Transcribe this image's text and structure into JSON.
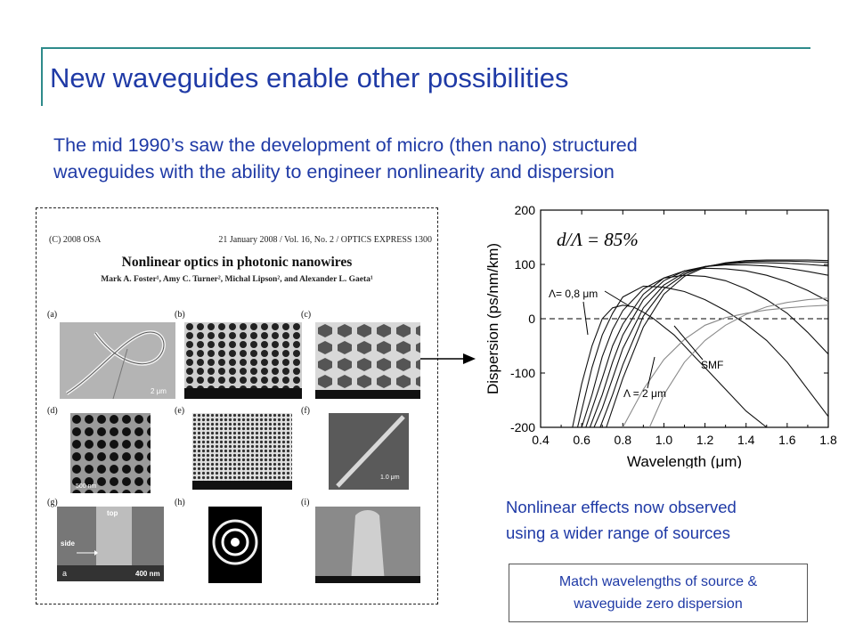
{
  "slide": {
    "title": "New waveguides enable other possibilities",
    "intro_lines": [
      "The mid 1990’s saw the development of micro (then nano) structured",
      "waveguides with the ability to engineer nonlinearity and dispersion"
    ],
    "note_lines": [
      "Nonlinear effects now observed",
      "using a wider range of sources"
    ],
    "box_lines": [
      "Match wavelengths of source &",
      "waveguide zero dispersion"
    ]
  },
  "paper": {
    "header_left": "(C) 2008 OSA",
    "header_right": "21 January 2008 / Vol. 16,  No. 2 / OPTICS EXPRESS  1300",
    "title": "Nonlinear optics in photonic nanowires",
    "authors": "Mark A. Foster¹, Amy C. Turner², Michal Lipson², and Alexander L. Gaeta¹",
    "panel_labels": [
      "(a)",
      "(b)",
      "(c)",
      "(d)",
      "(e)",
      "(f)",
      "(g)",
      "(h)",
      "(i)"
    ],
    "scale_a": "2 μm",
    "scale_d": "500 nm",
    "scale_f": "1.0 μm",
    "label_top": "top",
    "label_side": "side",
    "label_400": "400 nm",
    "label_a": "a"
  },
  "chart_data": {
    "type": "line",
    "title": "",
    "annotation": "d/Λ = 85%",
    "xlabel": "Wavelength (μm)",
    "ylabel": "Dispersion (ps/nm/km)",
    "xlim": [
      0.4,
      1.8
    ],
    "ylim": [
      -200,
      200
    ],
    "xticks": [
      "0.4",
      "0.6",
      "0.8",
      "1.0",
      "1.2",
      "1.4",
      "1.6",
      "1.8"
    ],
    "yticks": [
      "200",
      "100",
      "0",
      "-100",
      "-200"
    ],
    "grid": false,
    "series_labels": {
      "first": "Λ= 0,8 μm",
      "last": "Λ = 2 μm",
      "smf": "SMF"
    },
    "series": [
      {
        "x": [
          0.555,
          0.6,
          0.65,
          0.7,
          0.75,
          0.8,
          0.85,
          0.9,
          0.95,
          1.0,
          1.05,
          1.1,
          1.15,
          1.2,
          1.3,
          1.4,
          1.5,
          1.55,
          1.6,
          1.7,
          1.8
        ],
        "y": [
          -200,
          -120,
          -50,
          0,
          20,
          25,
          22,
          12,
          0,
          -15,
          -30,
          -50,
          -70,
          -90,
          -130,
          -170,
          -200,
          -200,
          -200,
          -200,
          -200
        ]
      },
      {
        "x": [
          0.58,
          0.65,
          0.7,
          0.75,
          0.8,
          0.9,
          1.0,
          1.1,
          1.2,
          1.3,
          1.4,
          1.5,
          1.6,
          1.7,
          1.8
        ],
        "y": [
          -200,
          -90,
          -30,
          10,
          40,
          60,
          58,
          50,
          35,
          15,
          -10,
          -40,
          -80,
          -130,
          -180
        ]
      },
      {
        "x": [
          0.6,
          0.65,
          0.7,
          0.75,
          0.8,
          0.9,
          1.0,
          1.1,
          1.2,
          1.3,
          1.4,
          1.5,
          1.6,
          1.7,
          1.8
        ],
        "y": [
          -200,
          -140,
          -70,
          -20,
          15,
          55,
          75,
          80,
          78,
          70,
          55,
          35,
          10,
          -25,
          -65
        ]
      },
      {
        "x": [
          0.62,
          0.7,
          0.75,
          0.8,
          0.9,
          1.0,
          1.1,
          1.2,
          1.3,
          1.4,
          1.5,
          1.6,
          1.7,
          1.8
        ],
        "y": [
          -200,
          -110,
          -50,
          -10,
          45,
          75,
          88,
          93,
          92,
          88,
          80,
          68,
          52,
          32
        ]
      },
      {
        "x": [
          0.64,
          0.7,
          0.75,
          0.8,
          0.9,
          1.0,
          1.1,
          1.2,
          1.3,
          1.4,
          1.5,
          1.6,
          1.7,
          1.8
        ],
        "y": [
          -200,
          -140,
          -80,
          -30,
          35,
          70,
          88,
          96,
          99,
          99,
          97,
          93,
          87,
          80
        ]
      },
      {
        "x": [
          0.66,
          0.7,
          0.75,
          0.8,
          0.9,
          1.0,
          1.1,
          1.2,
          1.3,
          1.4,
          1.5,
          1.6,
          1.7,
          1.8
        ],
        "y": [
          -200,
          -165,
          -110,
          -55,
          20,
          62,
          85,
          96,
          101,
          103,
          103,
          102,
          100,
          97
        ]
      },
      {
        "x": [
          0.69,
          0.75,
          0.8,
          0.9,
          1.0,
          1.1,
          1.2,
          1.3,
          1.4,
          1.5,
          1.6,
          1.7,
          1.8
        ],
        "y": [
          -200,
          -140,
          -85,
          5,
          55,
          82,
          96,
          102,
          105,
          106,
          106,
          105,
          104
        ]
      },
      {
        "x": [
          0.72,
          0.8,
          0.9,
          1.0,
          1.1,
          1.2,
          1.3,
          1.4,
          1.5,
          1.6,
          1.7,
          1.8
        ],
        "y": [
          -200,
          -110,
          -15,
          45,
          78,
          95,
          103,
          107,
          108,
          108,
          108,
          107
        ]
      },
      {
        "name": "SMF",
        "x": [
          0.8,
          0.9,
          1.0,
          1.1,
          1.2,
          1.3,
          1.4,
          1.5,
          1.6,
          1.7,
          1.8
        ],
        "y": [
          -200,
          -130,
          -75,
          -38,
          -12,
          2,
          10,
          16,
          20,
          23,
          25
        ]
      },
      {
        "x": [
          0.93,
          1.0,
          1.1,
          1.2,
          1.3,
          1.4,
          1.5,
          1.6,
          1.7,
          1.8
        ],
        "y": [
          -200,
          -140,
          -80,
          -40,
          -12,
          8,
          22,
          30,
          35,
          38
        ]
      }
    ]
  },
  "colors": {
    "accent": "#1f3aa6",
    "rule": "#2e8b8b"
  }
}
